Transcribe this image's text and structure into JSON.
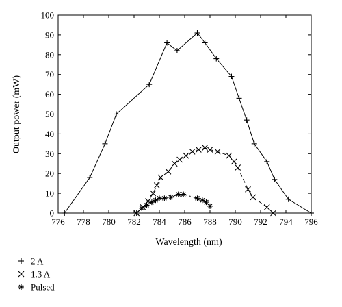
{
  "chart_data": {
    "type": "line",
    "xlabel": "Wavelength (nm)",
    "ylabel": "Output power (mW)",
    "xlim": [
      776,
      796
    ],
    "ylim": [
      0,
      100
    ],
    "xticks": [
      "776",
      "778",
      "780",
      "782",
      "784",
      "786",
      "788",
      "790",
      "792",
      "794",
      "796"
    ],
    "yticks": [
      "0",
      "10",
      "20",
      "30",
      "40",
      "50",
      "60",
      "70",
      "80",
      "90",
      "100"
    ],
    "grid": false,
    "legend_position": "below-left",
    "series": [
      {
        "name": "2 A",
        "marker": "plus",
        "line": "solid",
        "x": [
          776.5,
          778.5,
          779.7,
          780.6,
          783.2,
          784.6,
          785.4,
          787.0,
          787.6,
          788.5,
          789.7,
          790.3,
          790.9,
          791.5,
          792.5,
          793.1,
          794.2,
          796.0
        ],
        "y": [
          0,
          18,
          35,
          50,
          65,
          86,
          82,
          91,
          86,
          78,
          69,
          58,
          47,
          35,
          26,
          17,
          7,
          0
        ]
      },
      {
        "name": "1.3 A",
        "marker": "x",
        "line": "dashed",
        "x": [
          782.2,
          782.7,
          783.1,
          783.5,
          783.8,
          784.1,
          784.7,
          785.2,
          785.6,
          786.1,
          786.6,
          787.1,
          787.6,
          788.0,
          788.6,
          789.5,
          789.9,
          790.2,
          791.0,
          791.4,
          792.5,
          793.0
        ],
        "y": [
          0,
          3,
          6,
          10,
          14,
          18,
          21,
          25,
          27,
          29,
          31,
          32,
          33,
          32,
          31,
          29,
          26,
          23,
          12,
          8,
          3,
          0
        ]
      },
      {
        "name": "Pulsed",
        "marker": "star",
        "line": "dashdot",
        "x": [
          782.2,
          782.6,
          783.0,
          783.4,
          783.7,
          784.0,
          784.4,
          784.9,
          785.5,
          785.9,
          787.0,
          787.4,
          787.7,
          788.0
        ],
        "y": [
          0,
          2.5,
          4,
          5.5,
          6.5,
          7.5,
          7.5,
          8,
          9.5,
          9.5,
          7.5,
          6.5,
          5.5,
          3.5
        ]
      }
    ]
  }
}
